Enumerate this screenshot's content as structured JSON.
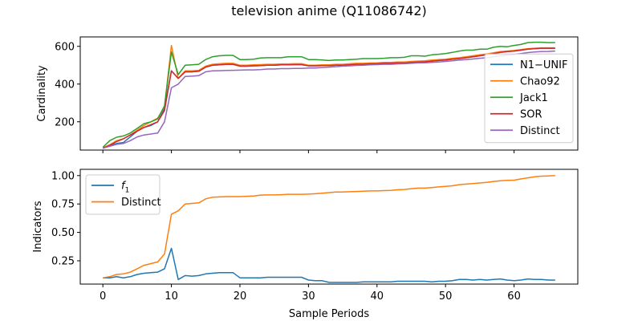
{
  "chart_data": [
    {
      "type": "line",
      "title": "television anime (Q11086742)",
      "xlabel": "",
      "ylabel": "Cardinality",
      "xlim": [
        -3.3,
        69.3
      ],
      "ylim": [
        50,
        650
      ],
      "xticks": [
        0,
        10,
        20,
        30,
        40,
        50,
        60
      ],
      "yticks": [
        200,
        400,
        600
      ],
      "ytick_labels": [
        "200",
        "400",
        "600"
      ],
      "legend_position": "center-right",
      "x": [
        0,
        1,
        2,
        3,
        4,
        5,
        6,
        7,
        8,
        9,
        10,
        11,
        12,
        13,
        14,
        15,
        16,
        17,
        18,
        19,
        20,
        21,
        22,
        23,
        24,
        25,
        26,
        27,
        28,
        29,
        30,
        31,
        32,
        33,
        34,
        35,
        36,
        37,
        38,
        39,
        40,
        41,
        42,
        43,
        44,
        45,
        46,
        47,
        48,
        49,
        50,
        51,
        52,
        53,
        54,
        55,
        56,
        57,
        58,
        59,
        60,
        61,
        62,
        63,
        64,
        65,
        66
      ],
      "series": [
        {
          "name": "N1−UNIF",
          "color": "#1f77b4",
          "values": [
            60,
            75,
            85,
            90,
            120,
            150,
            170,
            180,
            200,
            270,
            470,
            430,
            465,
            465,
            468,
            490,
            500,
            502,
            505,
            505,
            495,
            495,
            497,
            498,
            500,
            500,
            502,
            502,
            503,
            503,
            497,
            497,
            498,
            498,
            500,
            500,
            502,
            505,
            505,
            507,
            508,
            510,
            510,
            512,
            512,
            515,
            517,
            518,
            522,
            525,
            528,
            532,
            535,
            540,
            545,
            550,
            555,
            562,
            568,
            572,
            575,
            580,
            585,
            588,
            590,
            590,
            590
          ]
        },
        {
          "name": "Chao92",
          "color": "#ff7f0e",
          "values": [
            62,
            78,
            100,
            110,
            130,
            155,
            180,
            200,
            220,
            280,
            605,
            430,
            470,
            470,
            473,
            495,
            505,
            508,
            510,
            510,
            500,
            500,
            502,
            503,
            505,
            505,
            507,
            507,
            508,
            508,
            500,
            500,
            502,
            502,
            505,
            505,
            508,
            510,
            510,
            512,
            512,
            515,
            515,
            517,
            517,
            520,
            522,
            523,
            527,
            530,
            532,
            537,
            540,
            545,
            550,
            555,
            560,
            566,
            572,
            575,
            578,
            583,
            588,
            590,
            592,
            592,
            592
          ]
        },
        {
          "name": "Jack1",
          "color": "#2ca02c",
          "values": [
            65,
            100,
            118,
            125,
            140,
            165,
            190,
            200,
            215,
            285,
            570,
            450,
            500,
            502,
            505,
            530,
            545,
            550,
            552,
            552,
            530,
            530,
            532,
            538,
            540,
            540,
            540,
            545,
            545,
            545,
            530,
            530,
            528,
            525,
            528,
            528,
            530,
            532,
            535,
            535,
            535,
            537,
            540,
            540,
            542,
            550,
            550,
            548,
            555,
            558,
            562,
            568,
            575,
            580,
            580,
            585,
            585,
            595,
            600,
            598,
            605,
            610,
            620,
            622,
            622,
            620,
            620
          ]
        },
        {
          "name": "SOR",
          "color": "#d62728",
          "values": [
            60,
            75,
            95,
            110,
            130,
            150,
            170,
            185,
            200,
            260,
            470,
            430,
            465,
            465,
            468,
            490,
            500,
            502,
            505,
            505,
            495,
            495,
            497,
            498,
            500,
            500,
            502,
            502,
            503,
            503,
            497,
            497,
            498,
            498,
            500,
            500,
            502,
            505,
            505,
            507,
            508,
            510,
            510,
            512,
            512,
            515,
            517,
            518,
            522,
            525,
            528,
            532,
            535,
            540,
            545,
            550,
            555,
            562,
            568,
            572,
            575,
            580,
            585,
            588,
            590,
            590,
            590
          ]
        },
        {
          "name": "Distinct",
          "color": "#9467bd",
          "values": [
            60,
            70,
            80,
            85,
            100,
            120,
            130,
            135,
            140,
            200,
            380,
            400,
            440,
            442,
            445,
            465,
            470,
            471,
            472,
            473,
            474,
            475,
            475,
            477,
            480,
            480,
            482,
            482,
            483,
            483,
            485,
            485,
            488,
            490,
            492,
            495,
            497,
            499,
            500,
            502,
            503,
            505,
            505,
            507,
            508,
            510,
            512,
            513,
            515,
            517,
            520,
            523,
            527,
            530,
            533,
            537,
            540,
            545,
            550,
            553,
            557,
            562,
            567,
            570,
            572,
            573,
            575
          ]
        }
      ]
    },
    {
      "type": "line",
      "title": "",
      "xlabel": "Sample Periods",
      "ylabel": "Indicators",
      "xlim": [
        -3.3,
        69.3
      ],
      "ylim": [
        0.045,
        1.055
      ],
      "xticks": [
        0,
        10,
        20,
        30,
        40,
        50,
        60
      ],
      "xtick_labels": [
        "0",
        "10",
        "20",
        "30",
        "40",
        "50",
        "60"
      ],
      "yticks": [
        0.25,
        0.5,
        0.75,
        1.0
      ],
      "ytick_labels": [
        "0.25",
        "0.50",
        "0.75",
        "1.00"
      ],
      "legend_position": "upper-left",
      "x": [
        0,
        1,
        2,
        3,
        4,
        5,
        6,
        7,
        8,
        9,
        10,
        11,
        12,
        13,
        14,
        15,
        16,
        17,
        18,
        19,
        20,
        21,
        22,
        23,
        24,
        25,
        26,
        27,
        28,
        29,
        30,
        31,
        32,
        33,
        34,
        35,
        36,
        37,
        38,
        39,
        40,
        41,
        42,
        43,
        44,
        45,
        46,
        47,
        48,
        49,
        50,
        51,
        52,
        53,
        54,
        55,
        56,
        57,
        58,
        59,
        60,
        61,
        62,
        63,
        64,
        65,
        66
      ],
      "series": [
        {
          "name": "f₁",
          "legend_main": "f",
          "legend_sub": "1",
          "color": "#1f77b4",
          "values": [
            0.1,
            0.1,
            0.11,
            0.1,
            0.11,
            0.13,
            0.14,
            0.145,
            0.15,
            0.18,
            0.36,
            0.085,
            0.12,
            0.115,
            0.12,
            0.135,
            0.14,
            0.145,
            0.145,
            0.145,
            0.1,
            0.1,
            0.1,
            0.1,
            0.105,
            0.105,
            0.105,
            0.105,
            0.105,
            0.105,
            0.08,
            0.075,
            0.075,
            0.06,
            0.06,
            0.06,
            0.06,
            0.06,
            0.065,
            0.065,
            0.065,
            0.065,
            0.065,
            0.07,
            0.07,
            0.07,
            0.07,
            0.07,
            0.065,
            0.07,
            0.07,
            0.075,
            0.085,
            0.085,
            0.08,
            0.085,
            0.08,
            0.085,
            0.09,
            0.08,
            0.075,
            0.08,
            0.09,
            0.085,
            0.085,
            0.08,
            0.08
          ]
        },
        {
          "name": "Distinct",
          "color": "#ff7f0e",
          "values": [
            0.1,
            0.11,
            0.13,
            0.135,
            0.15,
            0.18,
            0.21,
            0.225,
            0.24,
            0.31,
            0.66,
            0.69,
            0.75,
            0.755,
            0.76,
            0.795,
            0.81,
            0.812,
            0.815,
            0.815,
            0.815,
            0.818,
            0.82,
            0.828,
            0.83,
            0.83,
            0.832,
            0.835,
            0.835,
            0.835,
            0.837,
            0.84,
            0.845,
            0.85,
            0.855,
            0.855,
            0.858,
            0.86,
            0.862,
            0.865,
            0.865,
            0.868,
            0.87,
            0.875,
            0.878,
            0.885,
            0.89,
            0.89,
            0.895,
            0.9,
            0.905,
            0.91,
            0.92,
            0.925,
            0.93,
            0.935,
            0.94,
            0.948,
            0.955,
            0.958,
            0.96,
            0.97,
            0.98,
            0.99,
            0.995,
            0.997,
            1.0
          ]
        }
      ]
    }
  ]
}
